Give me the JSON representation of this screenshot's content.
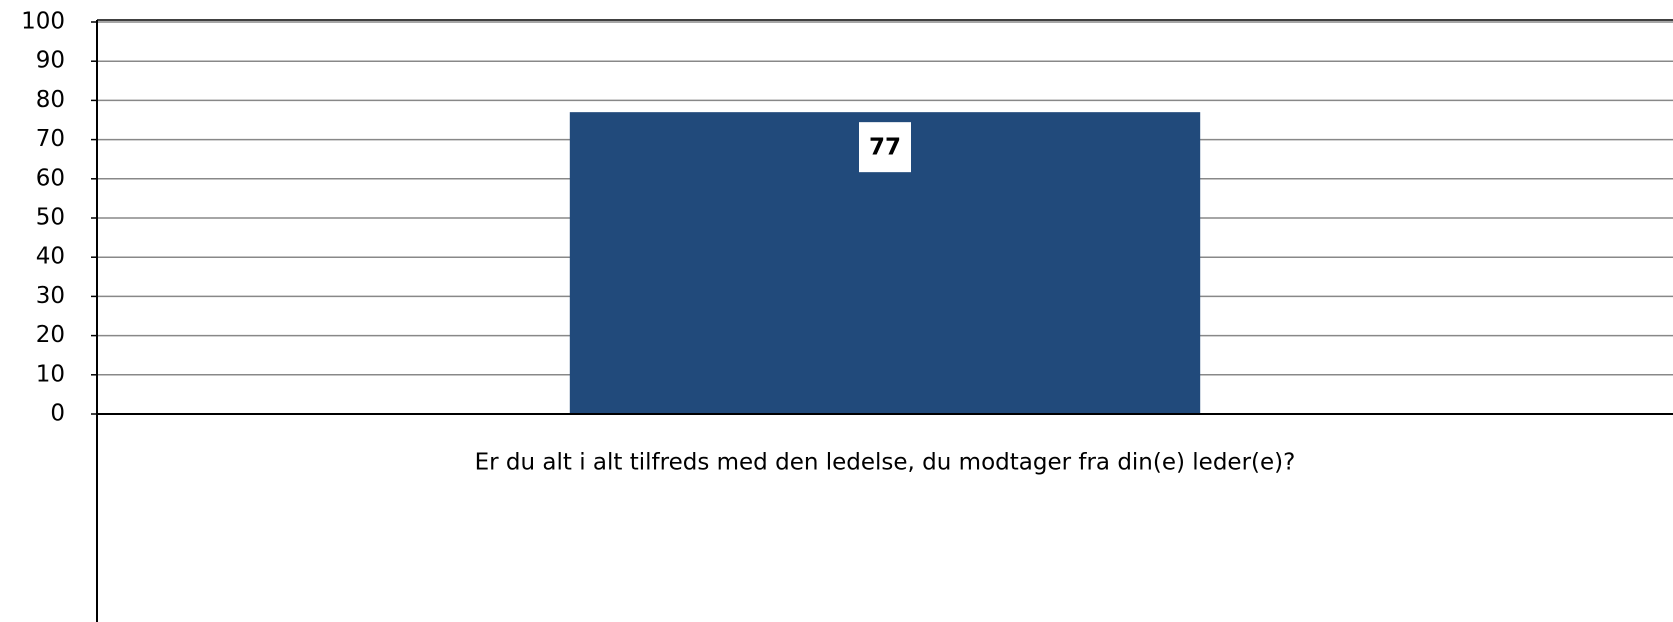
{
  "chart_data": {
    "type": "bar",
    "categories": [
      "Er du alt i alt tilfreds med den ledelse, du modtager fra din(e) leder(e)?"
    ],
    "values": [
      77
    ],
    "color": "#214a7b",
    "ylim": [
      0,
      100
    ],
    "yticks": [
      0,
      10,
      20,
      30,
      40,
      50,
      60,
      70,
      80,
      90,
      100
    ],
    "grid": true
  }
}
